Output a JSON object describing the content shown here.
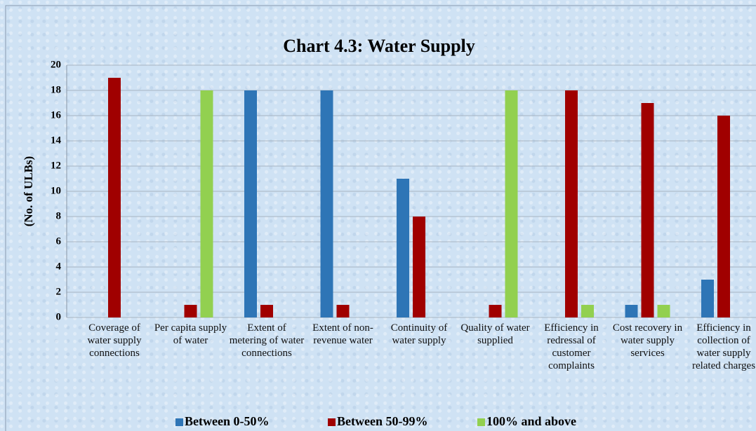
{
  "chart_data": {
    "type": "bar",
    "title": "Chart 4.3: Water Supply",
    "y_label": "(No. of ULBs)",
    "categories": [
      "Coverage of water supply connections",
      "Per capita supply of water",
      "Extent of metering of water connections",
      "Extent of non-revenue water",
      "Continuity of water supply",
      "Quality of water supplied",
      "Efficiency in redressal of customer complaints",
      "Cost recovery in water supply services",
      "Efficiency in collection of water supply related charges"
    ],
    "series": [
      {
        "name": "Between 0-50%",
        "color": "#2e75b6",
        "values": [
          0,
          0,
          18,
          18,
          11,
          0,
          0,
          1,
          3
        ]
      },
      {
        "name": "Between 50-99%",
        "color": "#a00000",
        "values": [
          19,
          1,
          1,
          1,
          8,
          1,
          18,
          17,
          16
        ]
      },
      {
        "name": "100% and above",
        "color": "#92d050",
        "values": [
          0,
          18,
          0,
          0,
          0,
          18,
          1,
          1,
          0
        ]
      }
    ],
    "ylim": [
      0,
      20
    ],
    "yticks": [
      0,
      2,
      4,
      6,
      8,
      10,
      12,
      14,
      16,
      18,
      20
    ],
    "grid": true,
    "legend": "bottom"
  }
}
